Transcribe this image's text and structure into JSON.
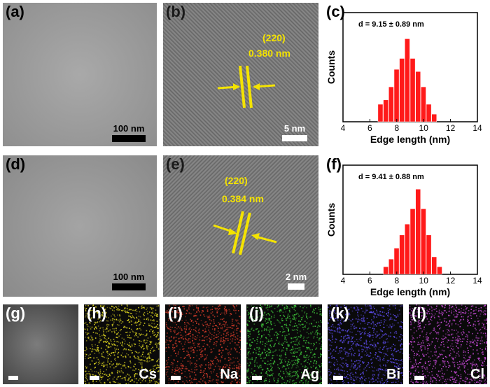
{
  "panels": {
    "a": {
      "label": "(a)",
      "scale": "100 nm"
    },
    "b": {
      "label": "(b)",
      "plane": "(220)",
      "spacing": "0.380 nm",
      "scale": "5 nm"
    },
    "c": {
      "label": "(c)"
    },
    "d": {
      "label": "(d)",
      "scale": "100 nm"
    },
    "e": {
      "label": "(e)",
      "plane": "(220)",
      "spacing": "0.384 nm",
      "scale": "2 nm"
    },
    "f": {
      "label": "(f)"
    },
    "g": {
      "label": "(g)"
    },
    "h": {
      "label": "(h)",
      "element": "Cs",
      "color": "#d8d020"
    },
    "i": {
      "label": "(i)",
      "element": "Na",
      "color": "#d03a2a"
    },
    "j": {
      "label": "(j)",
      "element": "Ag",
      "color": "#3ec23a"
    },
    "k": {
      "label": "(k)",
      "element": "Bi",
      "color": "#5a4ae6"
    },
    "l": {
      "label": "(l)",
      "element": "Cl",
      "color": "#c84ad8"
    }
  },
  "chart_data": [
    {
      "type": "bar",
      "annotation": "d = 9.15 ± 0.89 nm",
      "xlabel": "Edge length (nm)",
      "ylabel": "Counts",
      "xlim": [
        4,
        14
      ],
      "xticks": [
        "4",
        "6",
        "8",
        "10",
        "12",
        "14"
      ],
      "bar_color": "#ff1a1a",
      "x": [
        6.8,
        7.2,
        7.6,
        8.0,
        8.4,
        8.8,
        9.2,
        9.6,
        10.0,
        10.4,
        10.8
      ],
      "values": [
        0.16,
        0.2,
        0.32,
        0.48,
        0.58,
        0.76,
        0.58,
        0.46,
        0.32,
        0.16,
        0.07
      ]
    },
    {
      "type": "bar",
      "annotation": "d = 9.41 ± 0.88 nm",
      "xlabel": "Edge length (nm)",
      "ylabel": "Counts",
      "xlim": [
        4,
        14
      ],
      "xticks": [
        "4",
        "6",
        "8",
        "10",
        "12",
        "14"
      ],
      "bar_color": "#ff1a1a",
      "x": [
        7.2,
        7.6,
        8.0,
        8.4,
        8.8,
        9.2,
        9.6,
        10.0,
        10.4,
        10.8,
        11.2
      ],
      "values": [
        0.07,
        0.14,
        0.24,
        0.36,
        0.46,
        0.6,
        0.78,
        0.6,
        0.36,
        0.16,
        0.07
      ]
    }
  ]
}
